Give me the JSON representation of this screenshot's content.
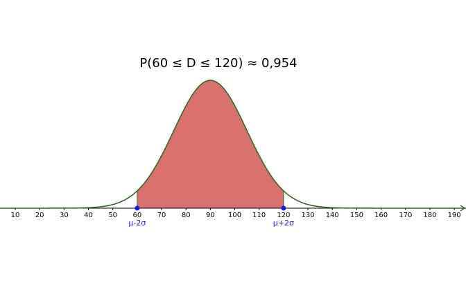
{
  "chart_data": {
    "type": "normal",
    "title": "P(60 ≤ D ≤ 120) ≈ 0,954",
    "mean": 90,
    "sd": 15,
    "xlim": [
      3.75,
      194.8
    ],
    "ylim": [
      -0.0164,
      0.0433
    ],
    "xticks": [
      10,
      20,
      30,
      40,
      50,
      60,
      70,
      80,
      90,
      100,
      110,
      120,
      130,
      140,
      150,
      160,
      170,
      180,
      190
    ],
    "curve_color": "#2a6e1e",
    "fill_color": "#d9706e",
    "points": [
      {
        "x": 60,
        "label": "μ-2σ"
      },
      {
        "x": 120,
        "label": "μ+2σ"
      }
    ],
    "point_color": "#1a1aff"
  }
}
